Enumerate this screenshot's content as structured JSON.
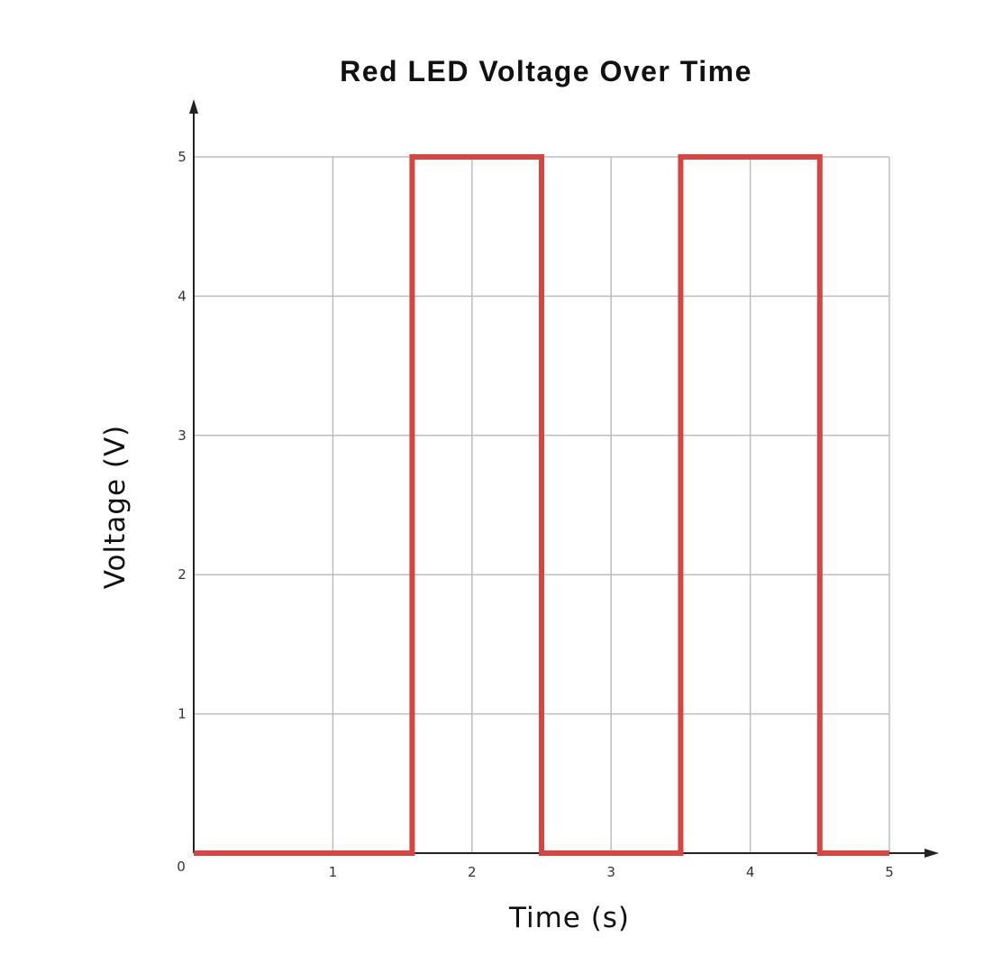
{
  "chart_data": {
    "type": "line",
    "title": "Red LED Voltage Over Time",
    "xlabel": "Time (s)",
    "ylabel": "Voltage (V)",
    "origin_label": "0",
    "xlim": [
      0,
      5
    ],
    "ylim": [
      0,
      5
    ],
    "x_ticks": [
      "1",
      "2",
      "3",
      "4",
      "5"
    ],
    "y_ticks": [
      "1",
      "2",
      "3",
      "4",
      "5"
    ],
    "grid": true,
    "step_style": "square-wave",
    "series": [
      {
        "color": "#d64541",
        "points": [
          [
            0,
            0
          ],
          [
            1.57,
            0
          ],
          [
            1.57,
            5
          ],
          [
            2.5,
            5
          ],
          [
            2.5,
            0
          ],
          [
            3.5,
            0
          ],
          [
            3.5,
            5
          ],
          [
            4.5,
            5
          ],
          [
            4.5,
            0
          ],
          [
            5,
            0
          ]
        ]
      }
    ],
    "colors": {
      "grid": "#bdbdbd",
      "axis": "#222222"
    }
  }
}
